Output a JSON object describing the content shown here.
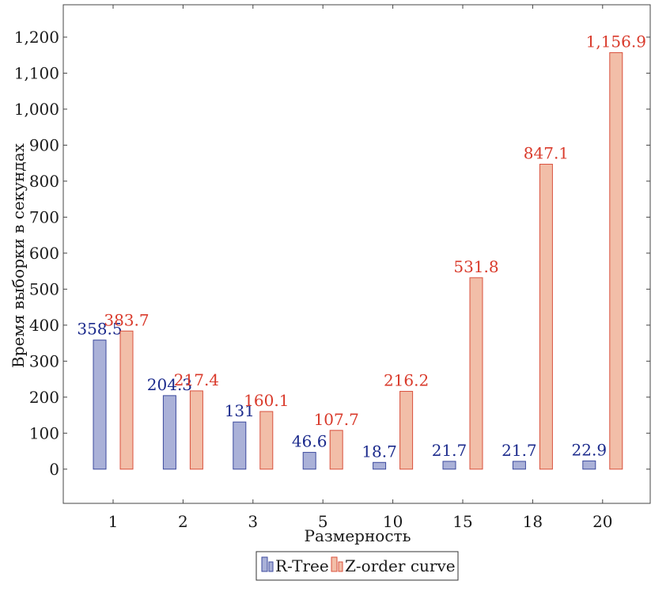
{
  "chart_data": {
    "type": "bar",
    "categories": [
      "1",
      "2",
      "3",
      "5",
      "10",
      "15",
      "18",
      "20"
    ],
    "series": [
      {
        "name": "R-Tree",
        "values": [
          358.5,
          204.3,
          131,
          46.6,
          18.7,
          21.7,
          21.7,
          22.9
        ],
        "labels": [
          "358.5",
          "204.3",
          "131",
          "46.6",
          "18.7",
          "21.7",
          "21.7",
          "22.9"
        ],
        "fill": "#aab1d8",
        "stroke": "#3c4a9e",
        "label_color": "#1b2a8c"
      },
      {
        "name": "Z-order curve",
        "values": [
          383.7,
          217.4,
          160.1,
          107.7,
          216.2,
          531.8,
          847.1,
          1156.9
        ],
        "labels": [
          "383.7",
          "217.4",
          "160.1",
          "107.7",
          "216.2",
          "531.8",
          "847.1",
          "1,156.9"
        ],
        "fill": "#f2bea8",
        "stroke": "#d9503c",
        "label_color": "#d93a2b"
      }
    ],
    "xlabel": "Размерность",
    "ylabel": "Время выборки в секундах",
    "ylim": [
      -95,
      1290
    ],
    "yticks": [
      0,
      100,
      200,
      300,
      400,
      500,
      600,
      700,
      800,
      900,
      1000,
      1100,
      1200
    ],
    "ytick_labels": [
      "0",
      "100",
      "200",
      "300",
      "400",
      "500",
      "600",
      "700",
      "800",
      "900",
      "1,000",
      "1,100",
      "1,200"
    ],
    "grid": false,
    "legend_position": "bottom-center"
  }
}
